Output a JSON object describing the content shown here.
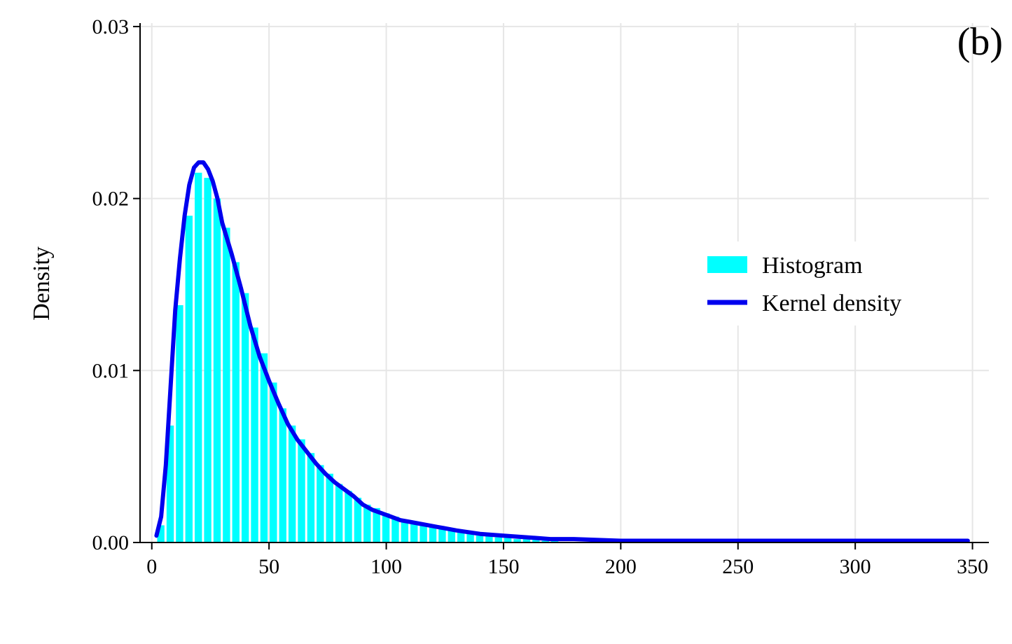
{
  "panel_label": "(b)",
  "colors": {
    "histogram": "#00ffff",
    "kernel_line": "#0000ee",
    "grid": "#e6e6e6",
    "axis": "#000000"
  },
  "chart_data": {
    "type": "bar",
    "title": "",
    "xlabel": "",
    "ylabel": "Density",
    "xlim": [
      -5,
      357
    ],
    "ylim": [
      0,
      0.0302
    ],
    "x_ticks": [
      0,
      50,
      100,
      150,
      200,
      250,
      300,
      350
    ],
    "y_ticks": [
      0.0,
      0.01,
      0.02,
      0.03
    ],
    "x_tick_labels": [
      "0",
      "50",
      "100",
      "150",
      "200",
      "250",
      "300",
      "350"
    ],
    "y_tick_labels": [
      "0.00",
      "0.01",
      "0.02",
      "0.03"
    ],
    "grid": true,
    "legend_position": "center-right",
    "legend": [
      "Histogram",
      "Kernel density"
    ],
    "series": [
      {
        "name": "Histogram",
        "type": "bar",
        "bin_width": 4,
        "bins_start": [
          2,
          6,
          10,
          14,
          18,
          22,
          26,
          30,
          34,
          38,
          42,
          46,
          50,
          54,
          58,
          62,
          66,
          70,
          74,
          78,
          82,
          86,
          90,
          94,
          98,
          102,
          106,
          110,
          114,
          118,
          122,
          126,
          130,
          134,
          138,
          142,
          146,
          150,
          154,
          158,
          162,
          166,
          170
        ],
        "values": [
          0.001,
          0.0068,
          0.0138,
          0.019,
          0.0215,
          0.0212,
          0.02,
          0.0183,
          0.0163,
          0.0145,
          0.0125,
          0.011,
          0.0093,
          0.0078,
          0.0068,
          0.006,
          0.0052,
          0.0045,
          0.004,
          0.0034,
          0.003,
          0.0026,
          0.0022,
          0.002,
          0.0017,
          0.0015,
          0.0013,
          0.0011,
          0.001,
          0.0009,
          0.0008,
          0.0007,
          0.0006,
          0.0005,
          0.0004,
          0.0004,
          0.0003,
          0.0003,
          0.0002,
          0.0002,
          0.0002,
          0.0001,
          0.0001
        ]
      },
      {
        "name": "Kernel density",
        "type": "line",
        "x": [
          2,
          4,
          6,
          8,
          10,
          12,
          14,
          16,
          18,
          20,
          22,
          24,
          26,
          28,
          30,
          34,
          38,
          42,
          46,
          50,
          54,
          58,
          62,
          66,
          70,
          74,
          78,
          82,
          86,
          90,
          94,
          98,
          102,
          106,
          110,
          114,
          118,
          122,
          126,
          130,
          140,
          150,
          160,
          170,
          180,
          200,
          220,
          240,
          260,
          280,
          300,
          320,
          340,
          348
        ],
        "y": [
          0.0004,
          0.0015,
          0.0045,
          0.009,
          0.0135,
          0.0165,
          0.019,
          0.0208,
          0.0218,
          0.0221,
          0.0221,
          0.0217,
          0.021,
          0.02,
          0.0186,
          0.0168,
          0.0148,
          0.0126,
          0.0108,
          0.0094,
          0.0081,
          0.0069,
          0.006,
          0.0053,
          0.0046,
          0.004,
          0.0035,
          0.0031,
          0.0027,
          0.0022,
          0.0019,
          0.0017,
          0.0015,
          0.0013,
          0.0012,
          0.0011,
          0.001,
          0.0009,
          0.0008,
          0.0007,
          0.0005,
          0.0004,
          0.0003,
          0.0002,
          0.0002,
          0.0001,
          0.0001,
          0.0001,
          0.0001,
          0.0001,
          0.0001,
          0.0001,
          0.0001,
          0.0001
        ]
      }
    ]
  }
}
